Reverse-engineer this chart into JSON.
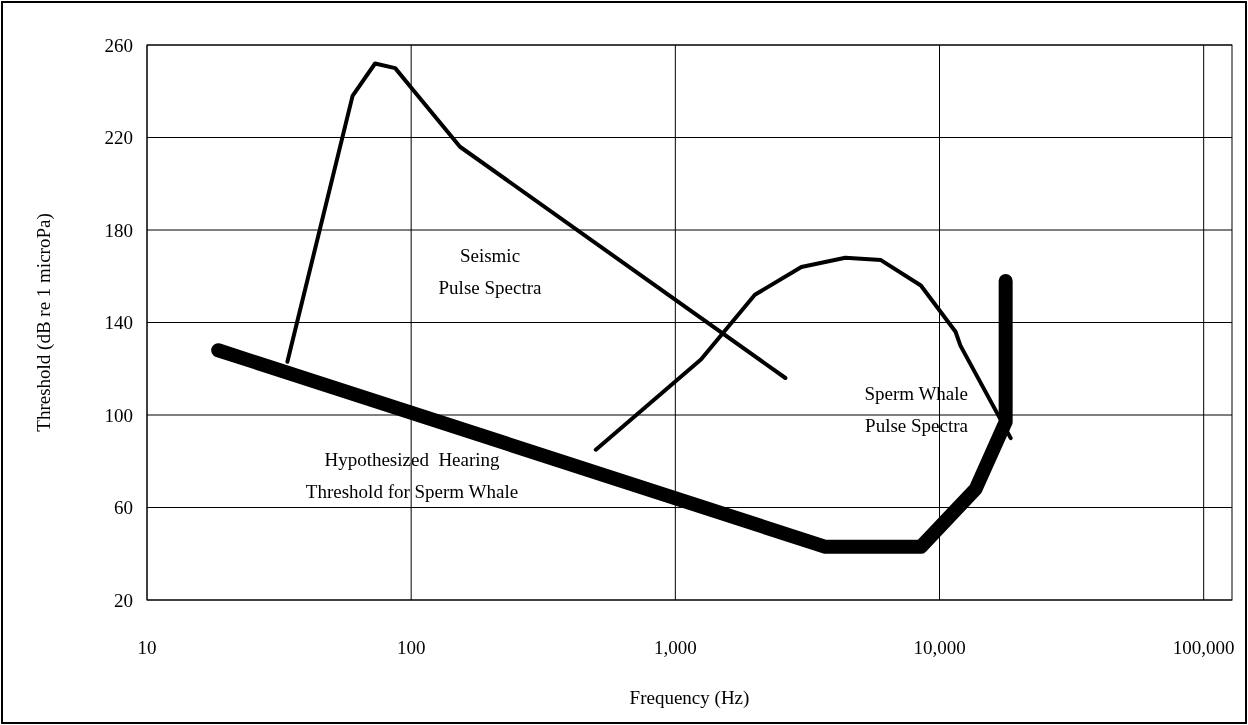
{
  "chart_data": {
    "type": "line",
    "xlabel": "Frequency (Hz)",
    "ylabel": "Threshold (dB re 1 microPa)",
    "log": "x",
    "grid": true,
    "line_style": "solid",
    "xlim": [
      10,
      128000
    ],
    "xticks": [
      10,
      100,
      {
        "value": 1000,
        "label": "1,000"
      },
      {
        "value": 10000,
        "label": "10,000"
      },
      {
        "value": 100000,
        "label": "100,000"
      }
    ],
    "ylim": [
      20,
      260
    ],
    "yticks": [
      20,
      60,
      100,
      140,
      180,
      220,
      260
    ],
    "series": [
      {
        "name": "Seismic\nPulse Spectra",
        "color": "#000000",
        "x": [
          34,
          60,
          73,
          87,
          101,
          153,
          2610
        ],
        "values": [
          123,
          238,
          252,
          250,
          241,
          216,
          116
        ]
      },
      {
        "name": "Sperm Whale\nPulse Spectra",
        "color": "#000000",
        "x": [
          500,
          1250,
          2000,
          3000,
          4400,
          6000,
          8500,
          11500,
          12000,
          18600
        ],
        "values": [
          85,
          124,
          152,
          164,
          168,
          167,
          156,
          136,
          130,
          90
        ]
      },
      {
        "name": "Hypothesized  Hearing\nThreshold for Sperm Whale",
        "color": "#000000",
        "x": [
          18.6,
          3700,
          8500,
          13700,
          17800,
          17800
        ],
        "values": [
          128,
          43,
          43,
          68,
          97,
          158
        ]
      }
    ]
  }
}
